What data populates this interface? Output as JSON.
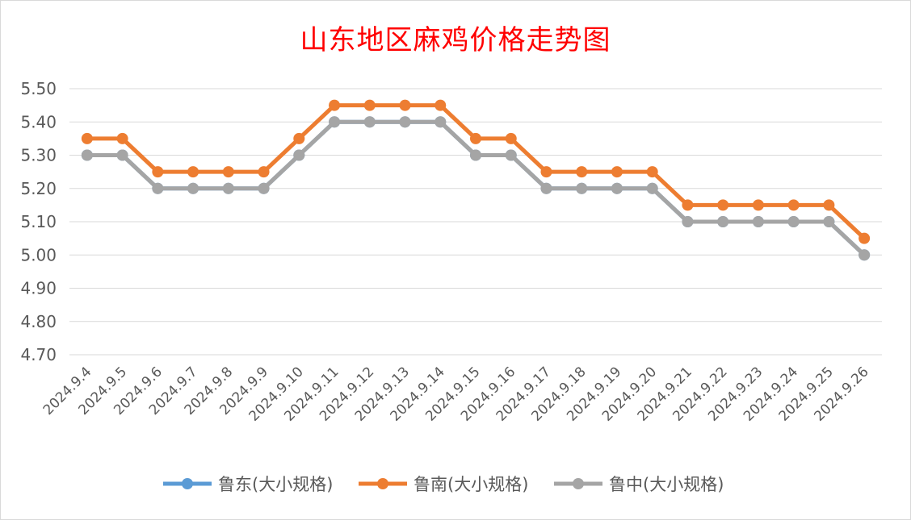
{
  "chart_data": {
    "type": "line",
    "title": "山东地区麻鸡价格走势图",
    "xlabel": "",
    "ylabel": "",
    "categories": [
      "2024.9.4",
      "2024.9.5",
      "2024.9.6",
      "2024.9.7",
      "2024.9.8",
      "2024.9.9",
      "2024.9.10",
      "2024.9.11",
      "2024.9.12",
      "2024.9.13",
      "2024.9.14",
      "2024.9.15",
      "2024.9.16",
      "2024.9.17",
      "2024.9.18",
      "2024.9.19",
      "2024.9.20",
      "2024.9.21",
      "2024.9.22",
      "2024.9.23",
      "2024.9.24",
      "2024.9.25",
      "2024.9.26"
    ],
    "ylim": [
      4.7,
      5.5
    ],
    "yticks": [
      "4.70",
      "4.80",
      "4.90",
      "5.00",
      "5.10",
      "5.20",
      "5.30",
      "5.40",
      "5.50"
    ],
    "grid": "horizontal",
    "legend_position": "bottom",
    "series": [
      {
        "name": "鲁东(大小规格)",
        "color": "#5b9bd5",
        "values": [
          5.3,
          5.3,
          5.2,
          5.2,
          5.2,
          5.2,
          5.3,
          5.4,
          5.4,
          5.4,
          5.4,
          5.3,
          5.3,
          5.2,
          5.2,
          5.2,
          5.2,
          5.1,
          5.1,
          5.1,
          5.1,
          5.1,
          5.0
        ]
      },
      {
        "name": "鲁南(大小规格)",
        "color": "#ed7d31",
        "values": [
          5.35,
          5.35,
          5.25,
          5.25,
          5.25,
          5.25,
          5.35,
          5.45,
          5.45,
          5.45,
          5.45,
          5.35,
          5.35,
          5.25,
          5.25,
          5.25,
          5.25,
          5.15,
          5.15,
          5.15,
          5.15,
          5.15,
          5.05
        ]
      },
      {
        "name": "鲁中(大小规格)",
        "color": "#a5a5a5",
        "values": [
          5.3,
          5.3,
          5.2,
          5.2,
          5.2,
          5.2,
          5.3,
          5.4,
          5.4,
          5.4,
          5.4,
          5.3,
          5.3,
          5.2,
          5.2,
          5.2,
          5.2,
          5.1,
          5.1,
          5.1,
          5.1,
          5.1,
          5.0
        ]
      }
    ]
  }
}
